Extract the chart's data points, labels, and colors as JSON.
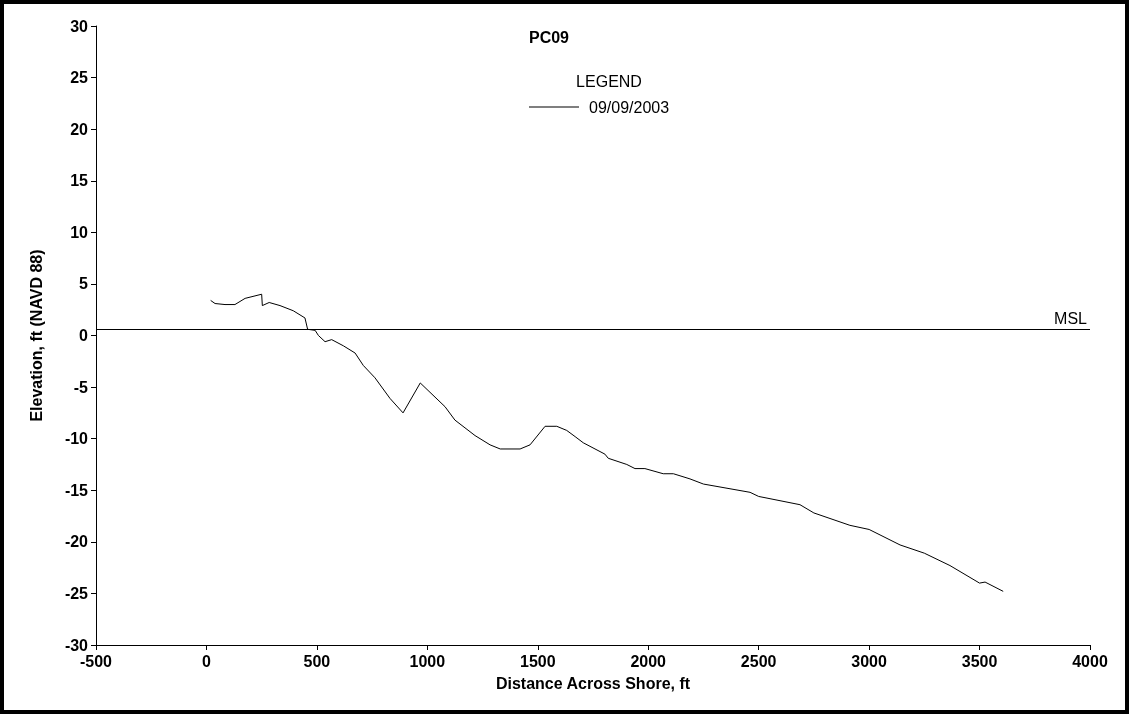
{
  "chart_data": {
    "type": "line",
    "title": "PC09",
    "xlabel": "Distance Across Shore, ft",
    "ylabel": "Elevation, ft (NAVD 88)",
    "legend_title": "LEGEND",
    "legend": "top",
    "grid": false,
    "marker": "none",
    "line_style": "solid",
    "xlim": [
      -500,
      4000
    ],
    "xticks": [
      -500,
      0,
      500,
      1000,
      1500,
      2000,
      2500,
      3000,
      3500,
      4000
    ],
    "ylim": [
      -30,
      30
    ],
    "yticks": [
      -30,
      -25,
      -20,
      -15,
      -10,
      -5,
      0,
      5,
      10,
      15,
      20,
      25,
      30
    ],
    "ref_lines": [
      {
        "axis": "y",
        "value": 0.6,
        "label": "MSL",
        "color": "#000000"
      }
    ],
    "series": [
      {
        "name": "09/09/2003",
        "color": "#000000",
        "x": [
          19,
          39,
          84,
          129,
          175,
          250,
          253,
          284,
          333,
          393,
          446,
          458,
          492,
          507,
          537,
          567,
          620,
          673,
          710,
          763,
          831,
          890,
          968,
          1080,
          1125,
          1216,
          1284,
          1330,
          1420,
          1465,
          1533,
          1586,
          1631,
          1669,
          1706,
          1804,
          1819,
          1903,
          1940,
          1985,
          2068,
          2114,
          2189,
          2250,
          2461,
          2500,
          2687,
          2750,
          2913,
          3000,
          3140,
          3250,
          3366,
          3500,
          3525,
          3607
        ],
        "values": [
          3.4,
          3.1,
          3.0,
          3.0,
          3.6,
          4.0,
          2.9,
          3.2,
          2.9,
          2.4,
          1.7,
          0.6,
          0.5,
          0.0,
          -0.6,
          -0.4,
          -1.0,
          -1.7,
          -2.9,
          -4.1,
          -6.1,
          -7.5,
          -4.6,
          -6.9,
          -8.2,
          -9.7,
          -10.6,
          -11.0,
          -11.0,
          -10.6,
          -8.8,
          -8.8,
          -9.2,
          -9.8,
          -10.4,
          -11.5,
          -11.9,
          -12.5,
          -12.9,
          -12.9,
          -13.4,
          -13.4,
          -13.9,
          -14.4,
          -15.2,
          -15.6,
          -16.4,
          -17.2,
          -18.4,
          -18.8,
          -20.3,
          -21.1,
          -22.3,
          -24.0,
          -23.9,
          -24.8
        ]
      }
    ]
  }
}
